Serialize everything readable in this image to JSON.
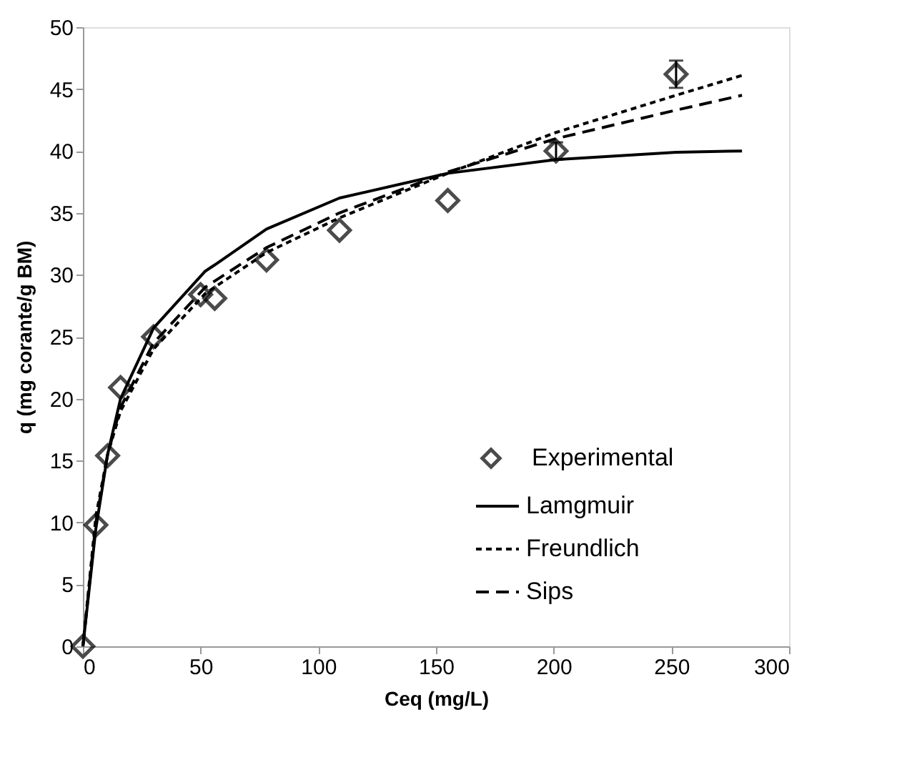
{
  "chart_data": {
    "type": "line",
    "xlabel": "Ceq (mg/L)",
    "ylabel": "q (mg corante/g BM)",
    "xlim": [
      0,
      300
    ],
    "xticks": [
      0,
      50,
      100,
      150,
      200,
      250,
      300
    ],
    "ylim": [
      0,
      50
    ],
    "yticks": [
      0,
      5,
      10,
      15,
      20,
      25,
      30,
      35,
      40,
      45,
      50
    ],
    "grid": false,
    "legend": "bottom right",
    "series": [
      {
        "name": "Experimental",
        "type": "scatter",
        "marker": "diamond",
        "color": "#000000",
        "x": [
          0,
          5.5,
          10.5,
          16,
          30,
          50,
          56,
          78,
          109,
          155,
          201,
          252
        ],
        "values": [
          0,
          9.8,
          15.4,
          20.9,
          25.0,
          28.4,
          28.1,
          31.2,
          33.6,
          36.0,
          40.0,
          46.2
        ],
        "errors": [
          null,
          null,
          null,
          null,
          null,
          null,
          null,
          null,
          null,
          null,
          0.7,
          1.1
        ]
      },
      {
        "name": "Lamgmuir",
        "line_style": "solid",
        "color": "#000000",
        "x": [
          0,
          5.5,
          10.5,
          16,
          30,
          52,
          56,
          78,
          109,
          155,
          201,
          252,
          280
        ],
        "values": [
          0,
          9.5,
          15.5,
          20,
          25.7,
          30.3,
          30.8,
          33.7,
          36.2,
          38.2,
          39.3,
          39.9,
          40.0
        ]
      },
      {
        "name": "Freundlich",
        "line_style": "dotted",
        "color": "#000000",
        "x": [
          0,
          5.5,
          10.5,
          16,
          30,
          52,
          56,
          78,
          109,
          155,
          201,
          252,
          280
        ],
        "values": [
          0,
          10.5,
          15.5,
          19,
          24,
          28.5,
          29,
          31.8,
          34.6,
          38.2,
          41.5,
          44.5,
          46.1
        ]
      },
      {
        "name": "Sips",
        "line_style": "dashed",
        "color": "#000000",
        "x": [
          0,
          5.5,
          10.5,
          16,
          30,
          52,
          56,
          78,
          109,
          155,
          201,
          252,
          280
        ],
        "values": [
          0,
          10,
          15.5,
          19.3,
          24.5,
          29,
          29.5,
          32.2,
          35,
          38.3,
          41,
          43.3,
          44.5
        ]
      }
    ]
  }
}
